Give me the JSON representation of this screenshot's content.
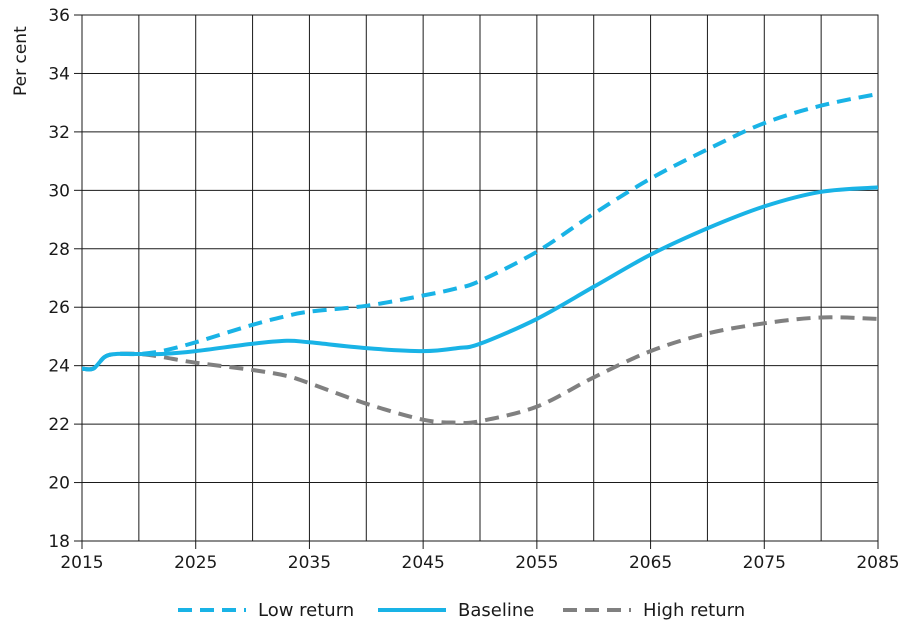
{
  "chart_data": {
    "type": "line",
    "title": "",
    "xlabel": "",
    "ylabel": "Per cent",
    "xlim": [
      2015,
      2085
    ],
    "ylim": [
      18,
      36
    ],
    "xticks": [
      2015,
      2025,
      2035,
      2045,
      2055,
      2065,
      2075,
      2085
    ],
    "xtick_labels": [
      "2015",
      "2025",
      "2035",
      "2045",
      "2055",
      "2065",
      "2075",
      "2085"
    ],
    "yticks": [
      18,
      20,
      22,
      24,
      26,
      28,
      30,
      32,
      34,
      36
    ],
    "ytick_labels": [
      "18",
      "20",
      "22",
      "24",
      "26",
      "28",
      "30",
      "32",
      "34",
      "36"
    ],
    "grid": true,
    "legend_position": "bottom",
    "colors": {
      "low": "#19b3e6",
      "baseline": "#19b3e6",
      "high": "#808080"
    },
    "x": [
      2015,
      2016,
      2017,
      2018,
      2020,
      2022,
      2025,
      2030,
      2033,
      2035,
      2040,
      2045,
      2048,
      2050,
      2055,
      2060,
      2065,
      2070,
      2075,
      2080,
      2085
    ],
    "series": [
      {
        "name": "Low return",
        "style": "dashed",
        "color": "#19b3e6",
        "values": [
          23.9,
          23.9,
          24.3,
          24.4,
          24.4,
          24.5,
          24.8,
          25.4,
          25.7,
          25.85,
          26.05,
          26.4,
          26.65,
          26.9,
          27.9,
          29.2,
          30.4,
          31.4,
          32.3,
          32.9,
          33.3
        ]
      },
      {
        "name": "Baseline",
        "style": "solid",
        "color": "#19b3e6",
        "values": [
          23.9,
          23.9,
          24.3,
          24.4,
          24.4,
          24.4,
          24.5,
          24.75,
          24.85,
          24.8,
          24.6,
          24.5,
          24.6,
          24.75,
          25.6,
          26.7,
          27.8,
          28.7,
          29.45,
          29.95,
          30.1
        ]
      },
      {
        "name": "High return",
        "style": "dashed",
        "color": "#808080",
        "values": [
          23.9,
          23.9,
          24.3,
          24.4,
          24.4,
          24.3,
          24.1,
          23.85,
          23.65,
          23.4,
          22.7,
          22.15,
          22.05,
          22.1,
          22.6,
          23.6,
          24.5,
          25.1,
          25.45,
          25.65,
          25.6
        ]
      }
    ]
  }
}
